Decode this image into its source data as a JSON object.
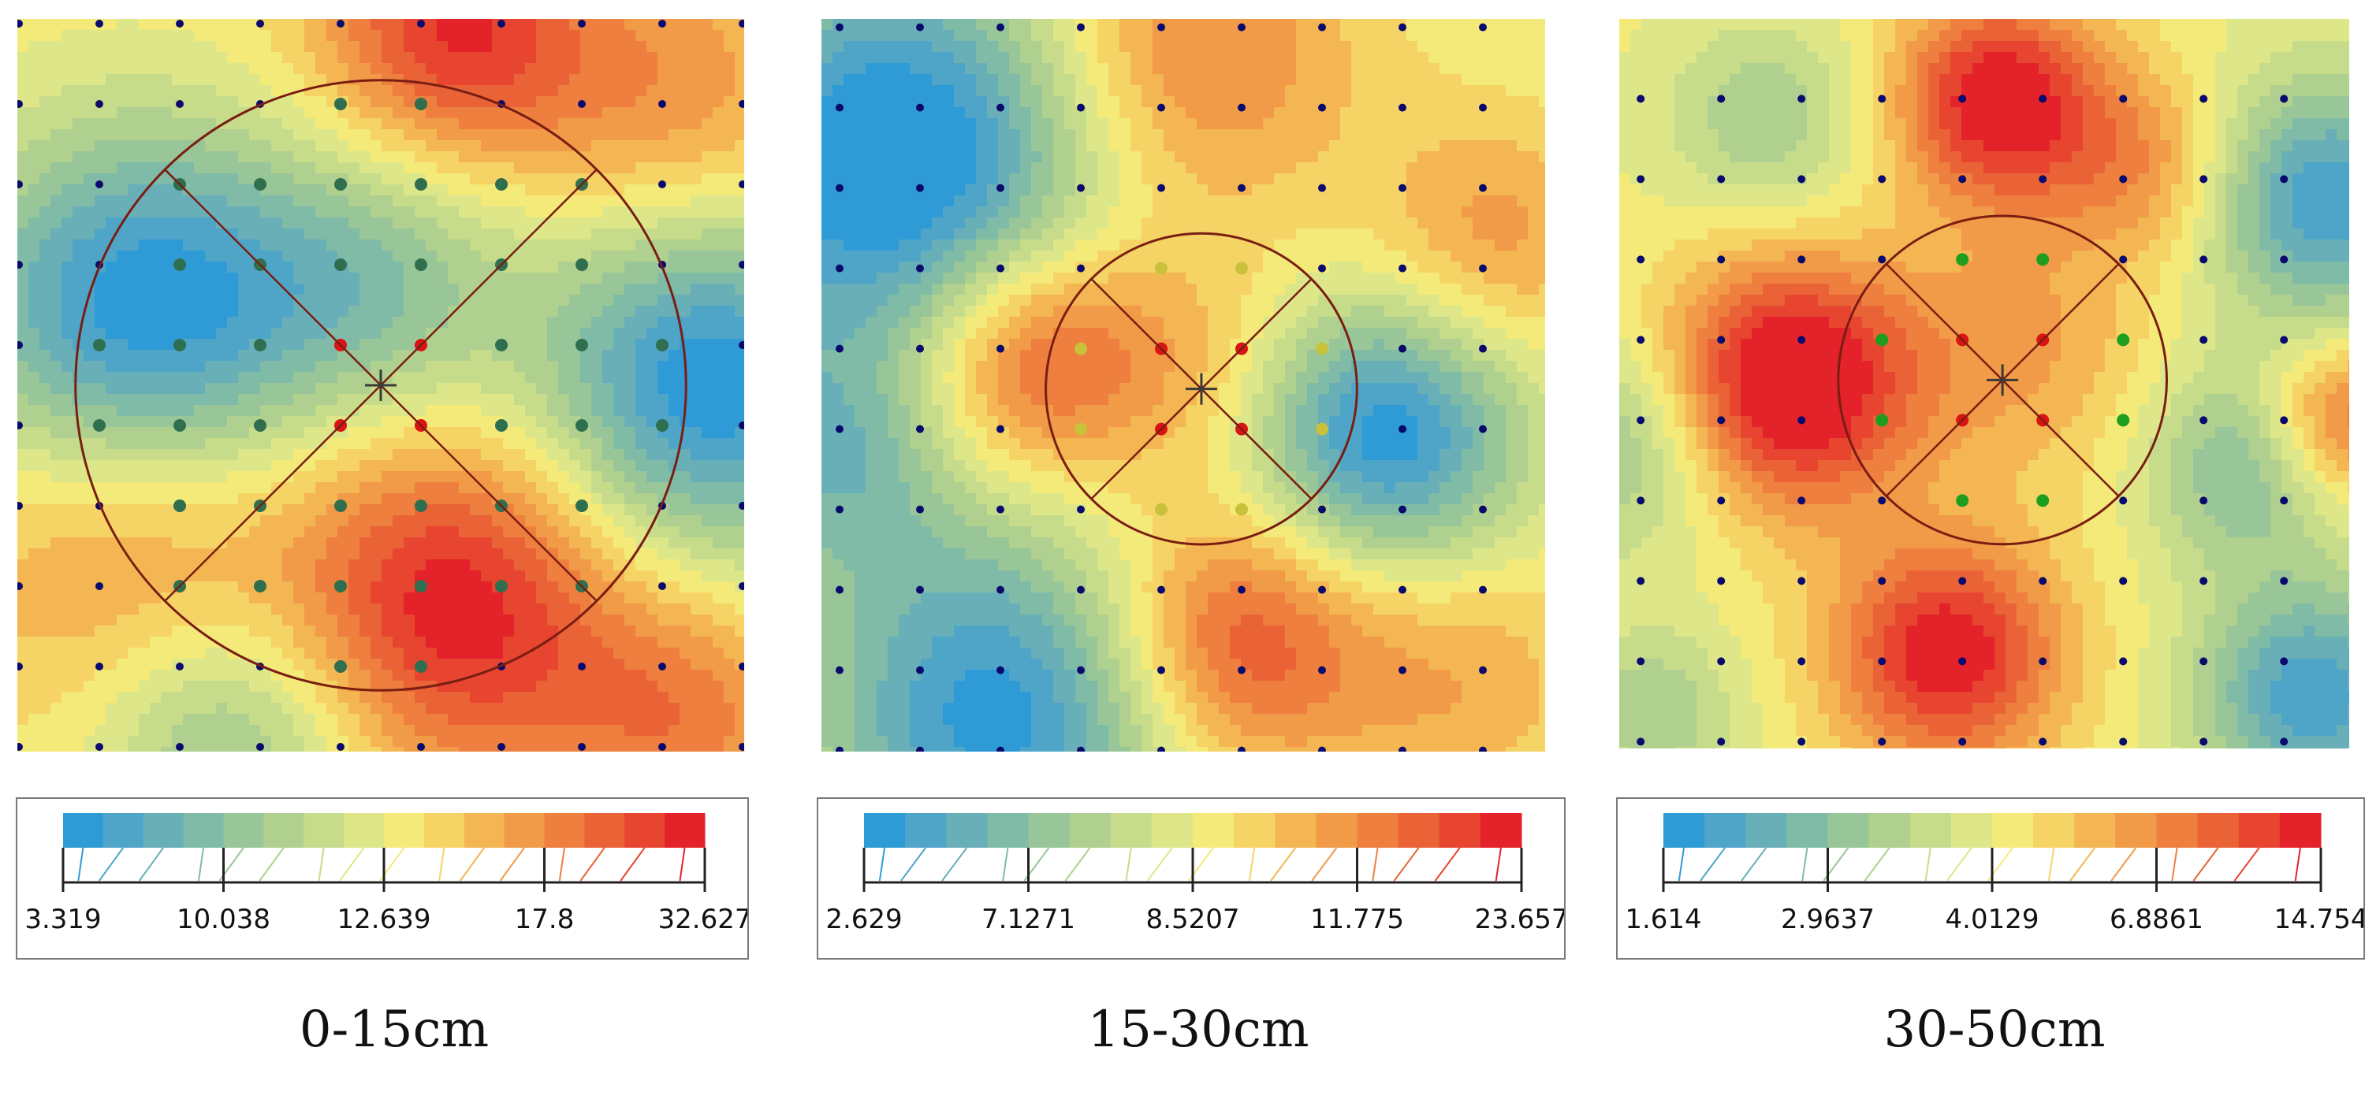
{
  "colors": {
    "ramp": [
      "#2f9bd6",
      "#4ea5c8",
      "#68afb7",
      "#7fbba6",
      "#98c698",
      "#afd08e",
      "#c6dc8a",
      "#dde78a",
      "#f3ea7a",
      "#f6d365",
      "#f4b653",
      "#f19a47",
      "#ee7f3f",
      "#ea6336",
      "#e7452f",
      "#e3222a"
    ],
    "sample_point": "#0a0a6e",
    "circle": "#7a1d12",
    "quadrant_lines": "#7a1d12",
    "center_marker": "#3a3a3a",
    "inner_point": "#d91414",
    "near_point_panel1": "#2f6f4f",
    "near_point_panel2": "#c8c23a",
    "near_point_panel3": "#1e9e1e"
  },
  "panels": [
    {
      "caption": "0-15cm",
      "legend_ticks": [
        "3.319",
        "10.038",
        "12.639",
        "17.8",
        "32.627"
      ],
      "legend_range": [
        3.319,
        32.627
      ]
    },
    {
      "caption": "15-30cm",
      "legend_ticks": [
        "2.629",
        "7.1271",
        "8.5207",
        "11.775",
        "23.657"
      ],
      "legend_range": [
        2.629,
        23.657
      ]
    },
    {
      "caption": "30-50cm",
      "legend_ticks": [
        "1.614",
        "2.9637",
        "4.0129",
        "6.8861",
        "14.754"
      ],
      "legend_range": [
        1.614,
        14.754
      ]
    }
  ]
}
